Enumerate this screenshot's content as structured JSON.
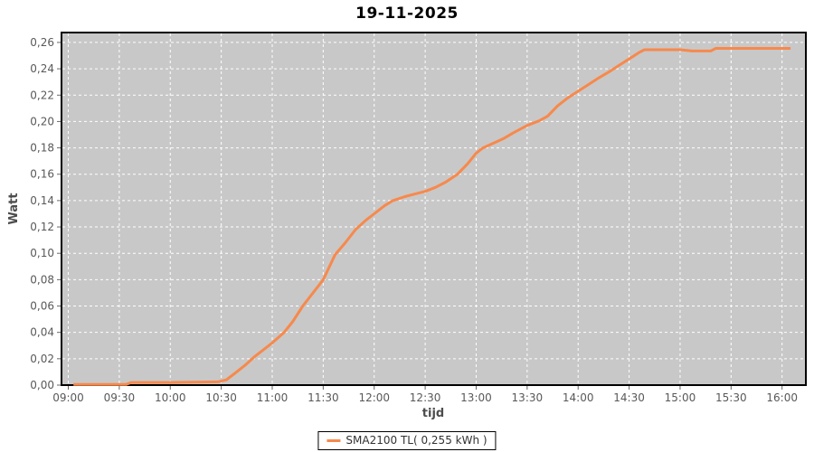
{
  "title": "19-11-2025",
  "colors": {
    "line": "#F7894C",
    "plot_bg": "#C8C8C8",
    "grid": "#FFFFFF",
    "plot_border": "#000000",
    "tick": "#666666",
    "tick_label": "#595959",
    "axis_title": "#4D4D4D",
    "title": "#000000"
  },
  "legend": {
    "label": "SMA2100 TL( 0,255 kWh )"
  },
  "chart_data": {
    "type": "line",
    "title": "19-11-2025",
    "xlabel": "tijd",
    "ylabel": "Watt",
    "x_min": "08:56",
    "x_max": "16:14",
    "ylim": [
      0,
      0.2675
    ],
    "grid": true,
    "grid_style": "white-dashed",
    "legend_position": "bottom-center",
    "x_ticks": [
      "09:00",
      "09:30",
      "10:00",
      "10:30",
      "11:00",
      "11:30",
      "12:00",
      "12:30",
      "13:00",
      "13:30",
      "14:00",
      "14:30",
      "15:00",
      "15:30",
      "16:00"
    ],
    "y_ticks": [
      {
        "value": 0.0,
        "label": "0,00"
      },
      {
        "value": 0.02,
        "label": "0,02"
      },
      {
        "value": 0.04,
        "label": "0,04"
      },
      {
        "value": 0.06,
        "label": "0,06"
      },
      {
        "value": 0.08,
        "label": "0,08"
      },
      {
        "value": 0.1,
        "label": "0,10"
      },
      {
        "value": 0.12,
        "label": "0,12"
      },
      {
        "value": 0.14,
        "label": "0,14"
      },
      {
        "value": 0.16,
        "label": "0,16"
      },
      {
        "value": 0.18,
        "label": "0,18"
      },
      {
        "value": 0.2,
        "label": "0,20"
      },
      {
        "value": 0.22,
        "label": "0,22"
      },
      {
        "value": 0.24,
        "label": "0,24"
      },
      {
        "value": 0.26,
        "label": "0,26"
      }
    ],
    "series": [
      {
        "name": "SMA2100 TL( 0,255 kWh )",
        "color": "#F7894C",
        "final_total_kwh": "0,255",
        "points": [
          [
            "09:03",
            0.0005
          ],
          [
            "09:20",
            0.0005
          ],
          [
            "09:34",
            0.0005
          ],
          [
            "09:37",
            0.002
          ],
          [
            "10:00",
            0.002
          ],
          [
            "10:28",
            0.0025
          ],
          [
            "10:33",
            0.004
          ],
          [
            "10:38",
            0.009
          ],
          [
            "10:44",
            0.015
          ],
          [
            "10:50",
            0.022
          ],
          [
            "10:56",
            0.028
          ],
          [
            "11:00",
            0.032
          ],
          [
            "11:07",
            0.04
          ],
          [
            "11:12",
            0.048
          ],
          [
            "11:18",
            0.06
          ],
          [
            "11:24",
            0.07
          ],
          [
            "11:30",
            0.08
          ],
          [
            "11:37",
            0.099
          ],
          [
            "11:43",
            0.108
          ],
          [
            "11:49",
            0.118
          ],
          [
            "11:55",
            0.125
          ],
          [
            "12:00",
            0.13
          ],
          [
            "12:06",
            0.136
          ],
          [
            "12:11",
            0.14
          ],
          [
            "12:18",
            0.143
          ],
          [
            "12:24",
            0.145
          ],
          [
            "12:30",
            0.147
          ],
          [
            "12:36",
            0.15
          ],
          [
            "12:42",
            0.154
          ],
          [
            "12:49",
            0.16
          ],
          [
            "12:55",
            0.168
          ],
          [
            "13:00",
            0.176
          ],
          [
            "13:04",
            0.18
          ],
          [
            "13:10",
            0.1835
          ],
          [
            "13:16",
            0.187
          ],
          [
            "13:22",
            0.1915
          ],
          [
            "13:30",
            0.197
          ],
          [
            "13:37",
            0.2005
          ],
          [
            "13:42",
            0.204
          ],
          [
            "13:48",
            0.212
          ],
          [
            "13:54",
            0.218
          ],
          [
            "14:00",
            0.223
          ],
          [
            "14:06",
            0.228
          ],
          [
            "14:12",
            0.233
          ],
          [
            "14:18",
            0.2375
          ],
          [
            "14:24",
            0.2425
          ],
          [
            "14:30",
            0.2475
          ],
          [
            "14:36",
            0.2525
          ],
          [
            "14:39",
            0.2545
          ],
          [
            "15:00",
            0.2545
          ],
          [
            "15:07",
            0.2535
          ],
          [
            "15:18",
            0.2535
          ],
          [
            "15:21",
            0.2555
          ],
          [
            "15:40",
            0.2555
          ],
          [
            "16:05",
            0.2555
          ]
        ]
      }
    ]
  }
}
